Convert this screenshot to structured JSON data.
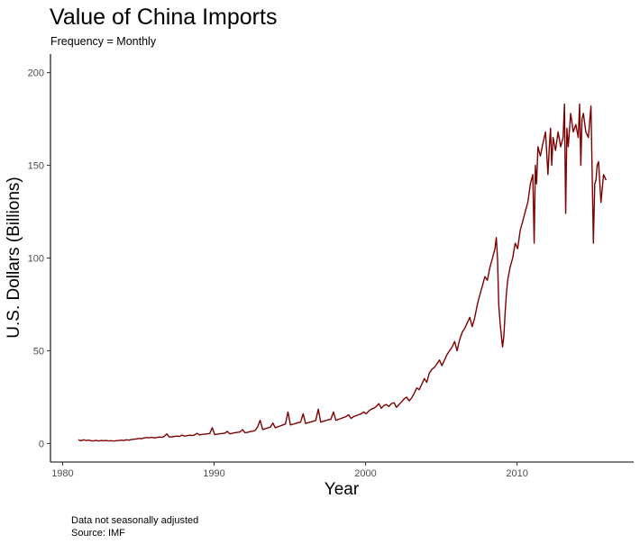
{
  "chart_data": {
    "type": "line",
    "title": "Value of China Imports",
    "subtitle": "Frequency = Monthly",
    "xlabel": "Year",
    "ylabel": "U.S. Dollars (Billions)",
    "xlim": [
      1979.2,
      2017.7
    ],
    "ylim": [
      -10,
      210
    ],
    "x_ticks": [
      1980,
      1990,
      2000,
      2010
    ],
    "y_ticks": [
      0,
      50,
      100,
      150,
      200
    ],
    "x_tick_labels": [
      "1980",
      "1990",
      "2000",
      "2010"
    ],
    "y_tick_labels": [
      "0",
      "50",
      "100",
      "150",
      "200"
    ],
    "grid": false,
    "legend": "none",
    "color": "#7f0000",
    "caption": [
      "Data not seasonally adjusted",
      "Source: IMF"
    ],
    "series": [
      {
        "x": [
          1981.04,
          1981.21,
          1981.38,
          1981.54,
          1981.71,
          1981.88,
          1982.04,
          1982.21,
          1982.38,
          1982.54,
          1982.71,
          1982.88,
          1983.04,
          1983.21,
          1983.38,
          1983.54,
          1983.71,
          1983.88,
          1984.04,
          1984.21,
          1984.38,
          1984.54,
          1984.71,
          1984.88,
          1985.04,
          1985.21,
          1985.38,
          1985.54,
          1985.71,
          1985.88,
          1986.04,
          1986.21,
          1986.38,
          1986.54,
          1986.71,
          1986.88,
          1987.04,
          1987.21,
          1987.38,
          1987.54,
          1987.71,
          1987.88,
          1988.04,
          1988.21,
          1988.38,
          1988.54,
          1988.71,
          1988.88,
          1989.04,
          1989.21,
          1989.38,
          1989.54,
          1989.71,
          1989.88,
          1990.04,
          1990.21,
          1990.38,
          1990.54,
          1990.71,
          1990.88,
          1991.04,
          1991.21,
          1991.38,
          1991.54,
          1991.71,
          1991.88,
          1992.04,
          1992.21,
          1992.38,
          1992.54,
          1992.71,
          1992.88,
          1993.04,
          1993.21,
          1993.38,
          1993.54,
          1993.71,
          1993.88,
          1994.04,
          1994.21,
          1994.38,
          1994.54,
          1994.71,
          1994.88,
          1995.04,
          1995.21,
          1995.38,
          1995.54,
          1995.71,
          1995.88,
          1996.04,
          1996.21,
          1996.38,
          1996.54,
          1996.71,
          1996.88,
          1997.04,
          1997.21,
          1997.38,
          1997.54,
          1997.71,
          1997.88,
          1998.04,
          1998.21,
          1998.38,
          1998.54,
          1998.71,
          1998.88,
          1999.04,
          1999.21,
          1999.38,
          1999.54,
          1999.71,
          1999.88,
          2000.04,
          2000.21,
          2000.38,
          2000.54,
          2000.71,
          2000.88,
          2001.04,
          2001.21,
          2001.38,
          2001.54,
          2001.71,
          2001.88,
          2002.04,
          2002.21,
          2002.38,
          2002.54,
          2002.71,
          2002.88,
          2003.04,
          2003.21,
          2003.38,
          2003.54,
          2003.71,
          2003.88,
          2004.04,
          2004.21,
          2004.38,
          2004.54,
          2004.71,
          2004.88,
          2005.04,
          2005.21,
          2005.38,
          2005.54,
          2005.71,
          2005.88,
          2006.04,
          2006.21,
          2006.38,
          2006.54,
          2006.71,
          2006.88,
          2007.04,
          2007.21,
          2007.38,
          2007.54,
          2007.71,
          2007.88,
          2008.04,
          2008.21,
          2008.38,
          2008.54,
          2008.63,
          2008.71,
          2008.79,
          2008.88,
          2009.04,
          2009.13,
          2009.21,
          2009.29,
          2009.38,
          2009.54,
          2009.71,
          2009.88,
          2010.04,
          2010.21,
          2010.38,
          2010.54,
          2010.71,
          2010.88,
          2011.04,
          2011.13,
          2011.21,
          2011.29,
          2011.38,
          2011.54,
          2011.71,
          2011.88,
          2012.04,
          2012.13,
          2012.21,
          2012.29,
          2012.38,
          2012.54,
          2012.71,
          2012.88,
          2013.04,
          2013.13,
          2013.21,
          2013.29,
          2013.38,
          2013.54,
          2013.71,
          2013.88,
          2014.04,
          2014.13,
          2014.21,
          2014.29,
          2014.38,
          2014.54,
          2014.71,
          2014.88,
          2015.04,
          2015.13,
          2015.21,
          2015.29,
          2015.38,
          2015.54,
          2015.71,
          2015.88
        ],
        "y": [
          2,
          1.5,
          2,
          1.6,
          1.8,
          1.5,
          1.4,
          1.7,
          1.3,
          1.6,
          1.5,
          1.6,
          1.4,
          1.5,
          1.3,
          1.5,
          1.6,
          1.8,
          1.6,
          2.0,
          1.8,
          2.1,
          2.3,
          2.5,
          2.7,
          2.6,
          3.0,
          3.2,
          3.1,
          3.3,
          3.0,
          3.2,
          3.5,
          3.3,
          3.8,
          5.2,
          3.5,
          3.6,
          3.8,
          4.0,
          3.8,
          4.5,
          4.0,
          4.2,
          4.5,
          4.3,
          4.6,
          5.5,
          4.6,
          4.9,
          5.0,
          5.2,
          5.4,
          8.5,
          4.8,
          5.0,
          5.3,
          5.4,
          5.6,
          6.5,
          5.2,
          5.5,
          5.8,
          6.0,
          6.2,
          7.5,
          5.8,
          6.0,
          6.4,
          6.6,
          7.0,
          9.0,
          12.5,
          7.5,
          8.0,
          8.4,
          8.8,
          11.0,
          8.5,
          9.0,
          9.5,
          10.0,
          10.5,
          17.0,
          10.0,
          10.4,
          10.8,
          11.2,
          11.5,
          16.0,
          10.8,
          11.2,
          11.6,
          12.0,
          12.4,
          18.5,
          11.5,
          12.0,
          12.4,
          12.8,
          13.0,
          17.0,
          12.5,
          13.0,
          13.5,
          14.0,
          14.5,
          15.5,
          13.5,
          14.5,
          15.0,
          15.5,
          16.0,
          17.0,
          16.0,
          17.5,
          18.5,
          19.0,
          20.0,
          21.5,
          19.0,
          20.5,
          21.0,
          20.0,
          21.5,
          22.0,
          19.5,
          21.0,
          22.5,
          24.0,
          25.0,
          23.0,
          24.5,
          27.0,
          30.0,
          29.0,
          32.0,
          35.0,
          33.0,
          38.0,
          40.0,
          41.0,
          43.0,
          45.0,
          42.0,
          45.0,
          48.0,
          50.0,
          52.0,
          55.0,
          50.0,
          56.0,
          60.0,
          62.0,
          65.0,
          68.0,
          63.0,
          68.0,
          75.0,
          80.0,
          85.0,
          90.0,
          88.0,
          95.0,
          100.0,
          105.0,
          111.0,
          100.0,
          75.0,
          65.0,
          52.0,
          58.0,
          70.0,
          80.0,
          88.0,
          95.0,
          100.0,
          108.0,
          105.0,
          115.0,
          120.0,
          125.0,
          130.0,
          140.0,
          145.0,
          108.0,
          150.0,
          140.0,
          160.0,
          155.0,
          162.0,
          168.0,
          145.0,
          160.0,
          170.0,
          150.0,
          165.0,
          158.0,
          168.0,
          160.0,
          165.0,
          183.0,
          124.0,
          170.0,
          160.0,
          178.0,
          168.0,
          172.0,
          165.0,
          183.0,
          150.0,
          175.0,
          178.0,
          168.0,
          165.0,
          182.0,
          108.0,
          140.0,
          142.0,
          150.0,
          152.0,
          130.0,
          145.0,
          142.0
        ]
      }
    ]
  }
}
